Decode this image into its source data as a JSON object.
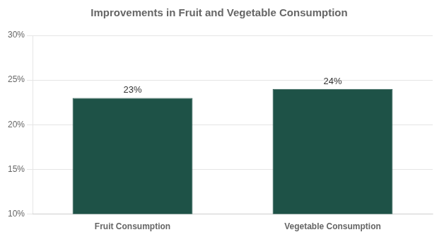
{
  "chart_data": {
    "type": "bar",
    "title": "Improvements in Fruit and Vegetable Consumption",
    "categories": [
      "Fruit Consumption",
      "Vegetable Consumption"
    ],
    "values": [
      23,
      24
    ],
    "value_labels": [
      "23%",
      "24%"
    ],
    "data_labels": true,
    "color": "#1E5247",
    "ylim": [
      10,
      30
    ],
    "yticks": [
      {
        "value": 10,
        "label": "10%"
      },
      {
        "value": 15,
        "label": "15%"
      },
      {
        "value": 20,
        "label": "20%"
      },
      {
        "value": 25,
        "label": "25%"
      },
      {
        "value": 30,
        "label": "30%"
      }
    ],
    "grid": true
  }
}
